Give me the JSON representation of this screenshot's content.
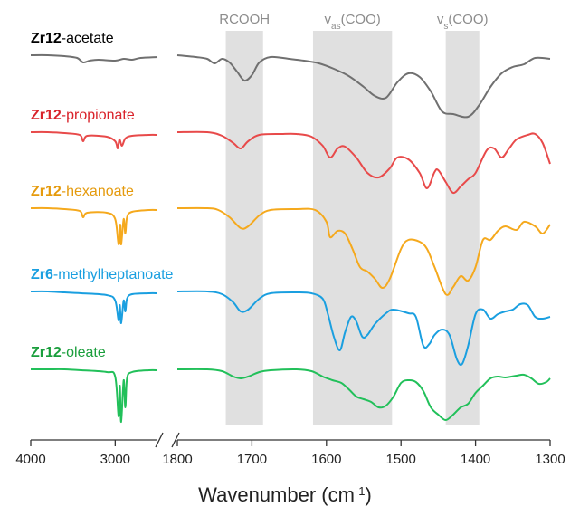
{
  "chart_data": {
    "type": "line",
    "title": "",
    "xlabel_main": "Wavenumber (cm",
    "xlabel_sup": "-1",
    "xlabel_close": ")",
    "axis_break": true,
    "x_segments": [
      {
        "range": [
          4000,
          2500
        ],
        "ticks": [
          4000,
          3000
        ]
      },
      {
        "range": [
          1800,
          1300
        ],
        "ticks": [
          1800,
          1700,
          1600,
          1500,
          1400,
          1300
        ]
      }
    ],
    "bands": [
      {
        "label_main": "RCOOH",
        "label_sub": "",
        "label_close": "",
        "range": [
          1735,
          1685
        ]
      },
      {
        "label_main": "v",
        "label_sub": "as",
        "label_close": "(COO)",
        "range": [
          1618,
          1512
        ]
      },
      {
        "label_main": "v",
        "label_sub": "s",
        "label_close": "(COO)",
        "range": [
          1440,
          1395
        ]
      }
    ],
    "band_color": "#e0e0e0",
    "band_label_color": "#8c8c8c",
    "series": [
      {
        "name_prefix": "Zr12",
        "name_suffix": "-acetate",
        "color": "#707070",
        "label_color": "#000000",
        "offset": 0,
        "low": [
          [
            4000,
            0
          ],
          [
            3800,
            0
          ],
          [
            3600,
            -1
          ],
          [
            3450,
            -3
          ],
          [
            3380,
            -8
          ],
          [
            3300,
            -6
          ],
          [
            3200,
            -5
          ],
          [
            3000,
            -6
          ],
          [
            2900,
            -4
          ],
          [
            2800,
            -5
          ],
          [
            2700,
            -3
          ],
          [
            2500,
            -2
          ]
        ],
        "high": [
          [
            1800,
            0
          ],
          [
            1775,
            -2
          ],
          [
            1760,
            -4
          ],
          [
            1750,
            -9
          ],
          [
            1740,
            -4
          ],
          [
            1730,
            -8
          ],
          [
            1720,
            -18
          ],
          [
            1710,
            -28
          ],
          [
            1700,
            -22
          ],
          [
            1690,
            -8
          ],
          [
            1675,
            -2
          ],
          [
            1650,
            -4
          ],
          [
            1630,
            -6
          ],
          [
            1610,
            -9
          ],
          [
            1590,
            -15
          ],
          [
            1570,
            -23
          ],
          [
            1550,
            -35
          ],
          [
            1535,
            -45
          ],
          [
            1520,
            -47
          ],
          [
            1505,
            -30
          ],
          [
            1490,
            -20
          ],
          [
            1475,
            -24
          ],
          [
            1460,
            -40
          ],
          [
            1445,
            -62
          ],
          [
            1430,
            -65
          ],
          [
            1410,
            -68
          ],
          [
            1395,
            -55
          ],
          [
            1380,
            -35
          ],
          [
            1365,
            -20
          ],
          [
            1350,
            -13
          ],
          [
            1335,
            -10
          ],
          [
            1320,
            -3
          ],
          [
            1300,
            -4
          ]
        ]
      },
      {
        "name_prefix": "Zr12",
        "name_suffix": "-propionate",
        "color": "#e84a4a",
        "label_color": "#d9232b",
        "offset": 1,
        "low": [
          [
            4000,
            0
          ],
          [
            3800,
            0
          ],
          [
            3600,
            -1
          ],
          [
            3420,
            -3
          ],
          [
            3380,
            -10
          ],
          [
            3330,
            -4
          ],
          [
            3100,
            -5
          ],
          [
            3000,
            -10
          ],
          [
            2970,
            -18
          ],
          [
            2950,
            -8
          ],
          [
            2920,
            -15
          ],
          [
            2880,
            -7
          ],
          [
            2800,
            -4
          ],
          [
            2600,
            -3
          ],
          [
            2500,
            -3
          ]
        ],
        "high": [
          [
            1800,
            0
          ],
          [
            1760,
            0
          ],
          [
            1740,
            -4
          ],
          [
            1725,
            -12
          ],
          [
            1715,
            -18
          ],
          [
            1705,
            -10
          ],
          [
            1690,
            -3
          ],
          [
            1660,
            -2
          ],
          [
            1640,
            -2
          ],
          [
            1620,
            -5
          ],
          [
            1605,
            -15
          ],
          [
            1595,
            -28
          ],
          [
            1585,
            -18
          ],
          [
            1575,
            -16
          ],
          [
            1560,
            -28
          ],
          [
            1545,
            -45
          ],
          [
            1530,
            -50
          ],
          [
            1515,
            -40
          ],
          [
            1505,
            -28
          ],
          [
            1490,
            -30
          ],
          [
            1475,
            -45
          ],
          [
            1465,
            -62
          ],
          [
            1455,
            -44
          ],
          [
            1450,
            -42
          ],
          [
            1440,
            -55
          ],
          [
            1430,
            -67
          ],
          [
            1420,
            -60
          ],
          [
            1410,
            -52
          ],
          [
            1400,
            -45
          ],
          [
            1385,
            -20
          ],
          [
            1375,
            -18
          ],
          [
            1365,
            -28
          ],
          [
            1355,
            -18
          ],
          [
            1345,
            -8
          ],
          [
            1330,
            -3
          ],
          [
            1320,
            -2
          ],
          [
            1310,
            -12
          ],
          [
            1300,
            -35
          ]
        ]
      },
      {
        "name_prefix": "Zr12",
        "name_suffix": "-hexanoate",
        "color": "#f5a91d",
        "label_color": "#e59a0c",
        "offset": 2,
        "low": [
          [
            4000,
            0
          ],
          [
            3800,
            0
          ],
          [
            3600,
            -1
          ],
          [
            3420,
            -3
          ],
          [
            3380,
            -10
          ],
          [
            3330,
            -5
          ],
          [
            3100,
            -5
          ],
          [
            3000,
            -12
          ],
          [
            2960,
            -40
          ],
          [
            2940,
            -18
          ],
          [
            2930,
            -40
          ],
          [
            2900,
            -12
          ],
          [
            2880,
            -28
          ],
          [
            2860,
            -10
          ],
          [
            2800,
            -4
          ],
          [
            2600,
            -2
          ],
          [
            2500,
            -2
          ]
        ],
        "high": [
          [
            1800,
            0
          ],
          [
            1760,
            0
          ],
          [
            1745,
            -2
          ],
          [
            1730,
            -10
          ],
          [
            1715,
            -22
          ],
          [
            1705,
            -20
          ],
          [
            1690,
            -8
          ],
          [
            1675,
            -2
          ],
          [
            1640,
            -1
          ],
          [
            1615,
            -2
          ],
          [
            1600,
            -15
          ],
          [
            1595,
            -32
          ],
          [
            1585,
            -25
          ],
          [
            1575,
            -28
          ],
          [
            1565,
            -45
          ],
          [
            1555,
            -65
          ],
          [
            1545,
            -70
          ],
          [
            1535,
            -78
          ],
          [
            1525,
            -88
          ],
          [
            1515,
            -78
          ],
          [
            1500,
            -45
          ],
          [
            1490,
            -35
          ],
          [
            1475,
            -37
          ],
          [
            1465,
            -45
          ],
          [
            1455,
            -65
          ],
          [
            1440,
            -95
          ],
          [
            1430,
            -87
          ],
          [
            1420,
            -75
          ],
          [
            1410,
            -80
          ],
          [
            1400,
            -65
          ],
          [
            1390,
            -35
          ],
          [
            1380,
            -35
          ],
          [
            1370,
            -25
          ],
          [
            1360,
            -20
          ],
          [
            1345,
            -24
          ],
          [
            1335,
            -15
          ],
          [
            1320,
            -20
          ],
          [
            1310,
            -28
          ],
          [
            1300,
            -18
          ]
        ]
      },
      {
        "name_prefix": "Zr6",
        "name_suffix": "-methylheptanoate",
        "color": "#1a9fe0",
        "label_color": "#1a9fe0",
        "offset": 3,
        "low": [
          [
            4000,
            0
          ],
          [
            3800,
            0
          ],
          [
            3600,
            -1
          ],
          [
            3400,
            -2
          ],
          [
            3100,
            -4
          ],
          [
            3000,
            -10
          ],
          [
            2960,
            -32
          ],
          [
            2945,
            -15
          ],
          [
            2930,
            -35
          ],
          [
            2900,
            -10
          ],
          [
            2880,
            -22
          ],
          [
            2860,
            -8
          ],
          [
            2800,
            -3
          ],
          [
            2600,
            -2
          ],
          [
            2500,
            -2
          ]
        ],
        "high": [
          [
            1800,
            0
          ],
          [
            1760,
            0
          ],
          [
            1740,
            -3
          ],
          [
            1725,
            -12
          ],
          [
            1715,
            -22
          ],
          [
            1705,
            -20
          ],
          [
            1690,
            -8
          ],
          [
            1675,
            -2
          ],
          [
            1640,
            -1
          ],
          [
            1620,
            -2
          ],
          [
            1605,
            -8
          ],
          [
            1598,
            -25
          ],
          [
            1590,
            -50
          ],
          [
            1582,
            -65
          ],
          [
            1575,
            -45
          ],
          [
            1567,
            -28
          ],
          [
            1560,
            -33
          ],
          [
            1552,
            -50
          ],
          [
            1545,
            -48
          ],
          [
            1535,
            -36
          ],
          [
            1520,
            -24
          ],
          [
            1510,
            -20
          ],
          [
            1490,
            -24
          ],
          [
            1480,
            -28
          ],
          [
            1470,
            -60
          ],
          [
            1462,
            -58
          ],
          [
            1455,
            -48
          ],
          [
            1445,
            -42
          ],
          [
            1435,
            -48
          ],
          [
            1425,
            -75
          ],
          [
            1418,
            -80
          ],
          [
            1410,
            -60
          ],
          [
            1400,
            -25
          ],
          [
            1390,
            -20
          ],
          [
            1380,
            -30
          ],
          [
            1370,
            -25
          ],
          [
            1360,
            -22
          ],
          [
            1350,
            -20
          ],
          [
            1340,
            -14
          ],
          [
            1330,
            -15
          ],
          [
            1320,
            -28
          ],
          [
            1310,
            -30
          ],
          [
            1300,
            -28
          ]
        ]
      },
      {
        "name_prefix": "Zr12",
        "name_suffix": "-oleate",
        "color": "#22c05a",
        "label_color": "#1a9e3c",
        "offset": 4,
        "low": [
          [
            4000,
            0
          ],
          [
            3800,
            0
          ],
          [
            3600,
            0
          ],
          [
            3400,
            -1
          ],
          [
            3100,
            -3
          ],
          [
            3000,
            -8
          ],
          [
            2960,
            -52
          ],
          [
            2945,
            -18
          ],
          [
            2930,
            -58
          ],
          [
            2900,
            -12
          ],
          [
            2880,
            -42
          ],
          [
            2860,
            -10
          ],
          [
            2800,
            -3
          ],
          [
            2600,
            -1
          ],
          [
            2500,
            -1
          ]
        ],
        "high": [
          [
            1800,
            0
          ],
          [
            1760,
            0
          ],
          [
            1740,
            -2
          ],
          [
            1725,
            -8
          ],
          [
            1715,
            -10
          ],
          [
            1705,
            -8
          ],
          [
            1690,
            -3
          ],
          [
            1675,
            -1
          ],
          [
            1640,
            0
          ],
          [
            1620,
            -2
          ],
          [
            1605,
            -8
          ],
          [
            1592,
            -12
          ],
          [
            1580,
            -15
          ],
          [
            1570,
            -22
          ],
          [
            1560,
            -30
          ],
          [
            1550,
            -33
          ],
          [
            1540,
            -36
          ],
          [
            1530,
            -42
          ],
          [
            1520,
            -40
          ],
          [
            1510,
            -30
          ],
          [
            1500,
            -15
          ],
          [
            1490,
            -12
          ],
          [
            1480,
            -14
          ],
          [
            1470,
            -24
          ],
          [
            1460,
            -42
          ],
          [
            1450,
            -50
          ],
          [
            1440,
            -56
          ],
          [
            1430,
            -50
          ],
          [
            1420,
            -42
          ],
          [
            1410,
            -38
          ],
          [
            1400,
            -26
          ],
          [
            1390,
            -18
          ],
          [
            1380,
            -10
          ],
          [
            1370,
            -8
          ],
          [
            1360,
            -9
          ],
          [
            1345,
            -7
          ],
          [
            1335,
            -6
          ],
          [
            1325,
            -10
          ],
          [
            1315,
            -16
          ],
          [
            1305,
            -14
          ],
          [
            1300,
            -10
          ]
        ]
      }
    ]
  }
}
